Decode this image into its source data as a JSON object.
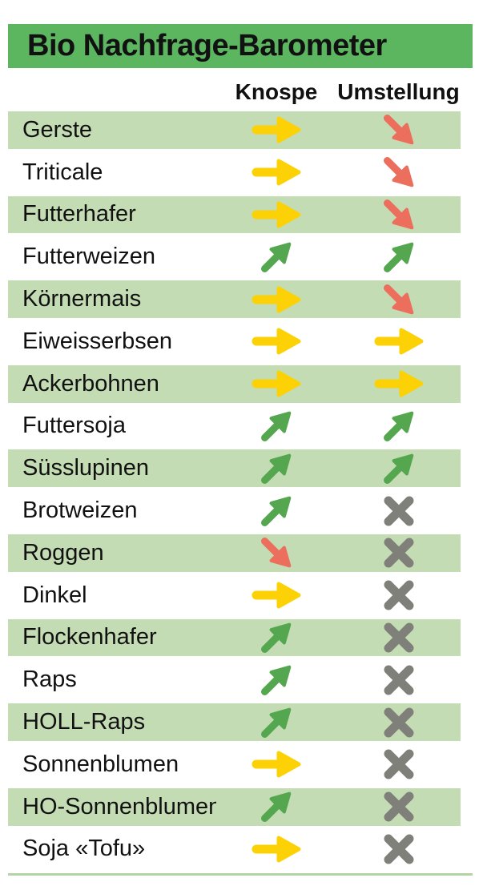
{
  "title": "Bio Nachfrage-Barometer",
  "columns": {
    "knospe": "Knospe",
    "umstellung": "Umstellung"
  },
  "rows": [
    {
      "label": "Gerste",
      "knospe": "steady",
      "umstellung": "down"
    },
    {
      "label": "Triticale",
      "knospe": "steady",
      "umstellung": "down"
    },
    {
      "label": "Futterhafer",
      "knospe": "steady",
      "umstellung": "down"
    },
    {
      "label": "Futterweizen",
      "knospe": "up",
      "umstellung": "up"
    },
    {
      "label": "Körnermais",
      "knospe": "steady",
      "umstellung": "down"
    },
    {
      "label": "Eiweisserbsen",
      "knospe": "steady",
      "umstellung": "steady"
    },
    {
      "label": "Ackerbohnen",
      "knospe": "steady",
      "umstellung": "steady"
    },
    {
      "label": "Futtersoja",
      "knospe": "up",
      "umstellung": "up"
    },
    {
      "label": "Süsslupinen",
      "knospe": "up",
      "umstellung": "up"
    },
    {
      "label": "Brotweizen",
      "knospe": "up",
      "umstellung": "none"
    },
    {
      "label": "Roggen",
      "knospe": "down",
      "umstellung": "none"
    },
    {
      "label": "Dinkel",
      "knospe": "steady",
      "umstellung": "none"
    },
    {
      "label": "Flockenhafer",
      "knospe": "up",
      "umstellung": "none"
    },
    {
      "label": "Raps",
      "knospe": "up",
      "umstellung": "none"
    },
    {
      "label": "HOLL-Raps",
      "knospe": "up",
      "umstellung": "none"
    },
    {
      "label": "Sonnenblumen",
      "knospe": "steady",
      "umstellung": "none"
    },
    {
      "label": "HO-Sonnenblumen",
      "knospe": "up",
      "umstellung": "none"
    },
    {
      "label": "Soja «Tofu»",
      "knospe": "steady",
      "umstellung": "none"
    }
  ],
  "symbol_meanings": {
    "up": "arrow-up-right",
    "steady": "arrow-right",
    "down": "arrow-down-right",
    "none": "cross"
  },
  "colors": {
    "header_bg": "#5cb660",
    "row_alt_bg": "#c4dcb4",
    "up": "#55a74f",
    "steady": "#fcd106",
    "down": "#ec6e5c",
    "none": "#80807a",
    "rule": "#b5d4a5",
    "text": "#111111"
  },
  "chart_data": {
    "type": "table",
    "title": "Bio Nachfrage-Barometer",
    "column_headers": [
      "",
      "Knospe",
      "Umstellung"
    ],
    "legend_position": "none",
    "rows": [
      [
        "Gerste",
        "steady",
        "down"
      ],
      [
        "Triticale",
        "steady",
        "down"
      ],
      [
        "Futterhafer",
        "steady",
        "down"
      ],
      [
        "Futterweizen",
        "up",
        "up"
      ],
      [
        "Körnermais",
        "steady",
        "down"
      ],
      [
        "Eiweisserbsen",
        "steady",
        "steady"
      ],
      [
        "Ackerbohnen",
        "steady",
        "steady"
      ],
      [
        "Futtersoja",
        "up",
        "up"
      ],
      [
        "Süsslupinen",
        "up",
        "up"
      ],
      [
        "Brotweizen",
        "up",
        "none"
      ],
      [
        "Roggen",
        "down",
        "none"
      ],
      [
        "Dinkel",
        "steady",
        "none"
      ],
      [
        "Flockenhafer",
        "up",
        "none"
      ],
      [
        "Raps",
        "up",
        "none"
      ],
      [
        "HOLL-Raps",
        "up",
        "none"
      ],
      [
        "Sonnenblumen",
        "steady",
        "none"
      ],
      [
        "HO-Sonnenblumen",
        "up",
        "none"
      ],
      [
        "Soja «Tofu»",
        "steady",
        "none"
      ]
    ]
  }
}
